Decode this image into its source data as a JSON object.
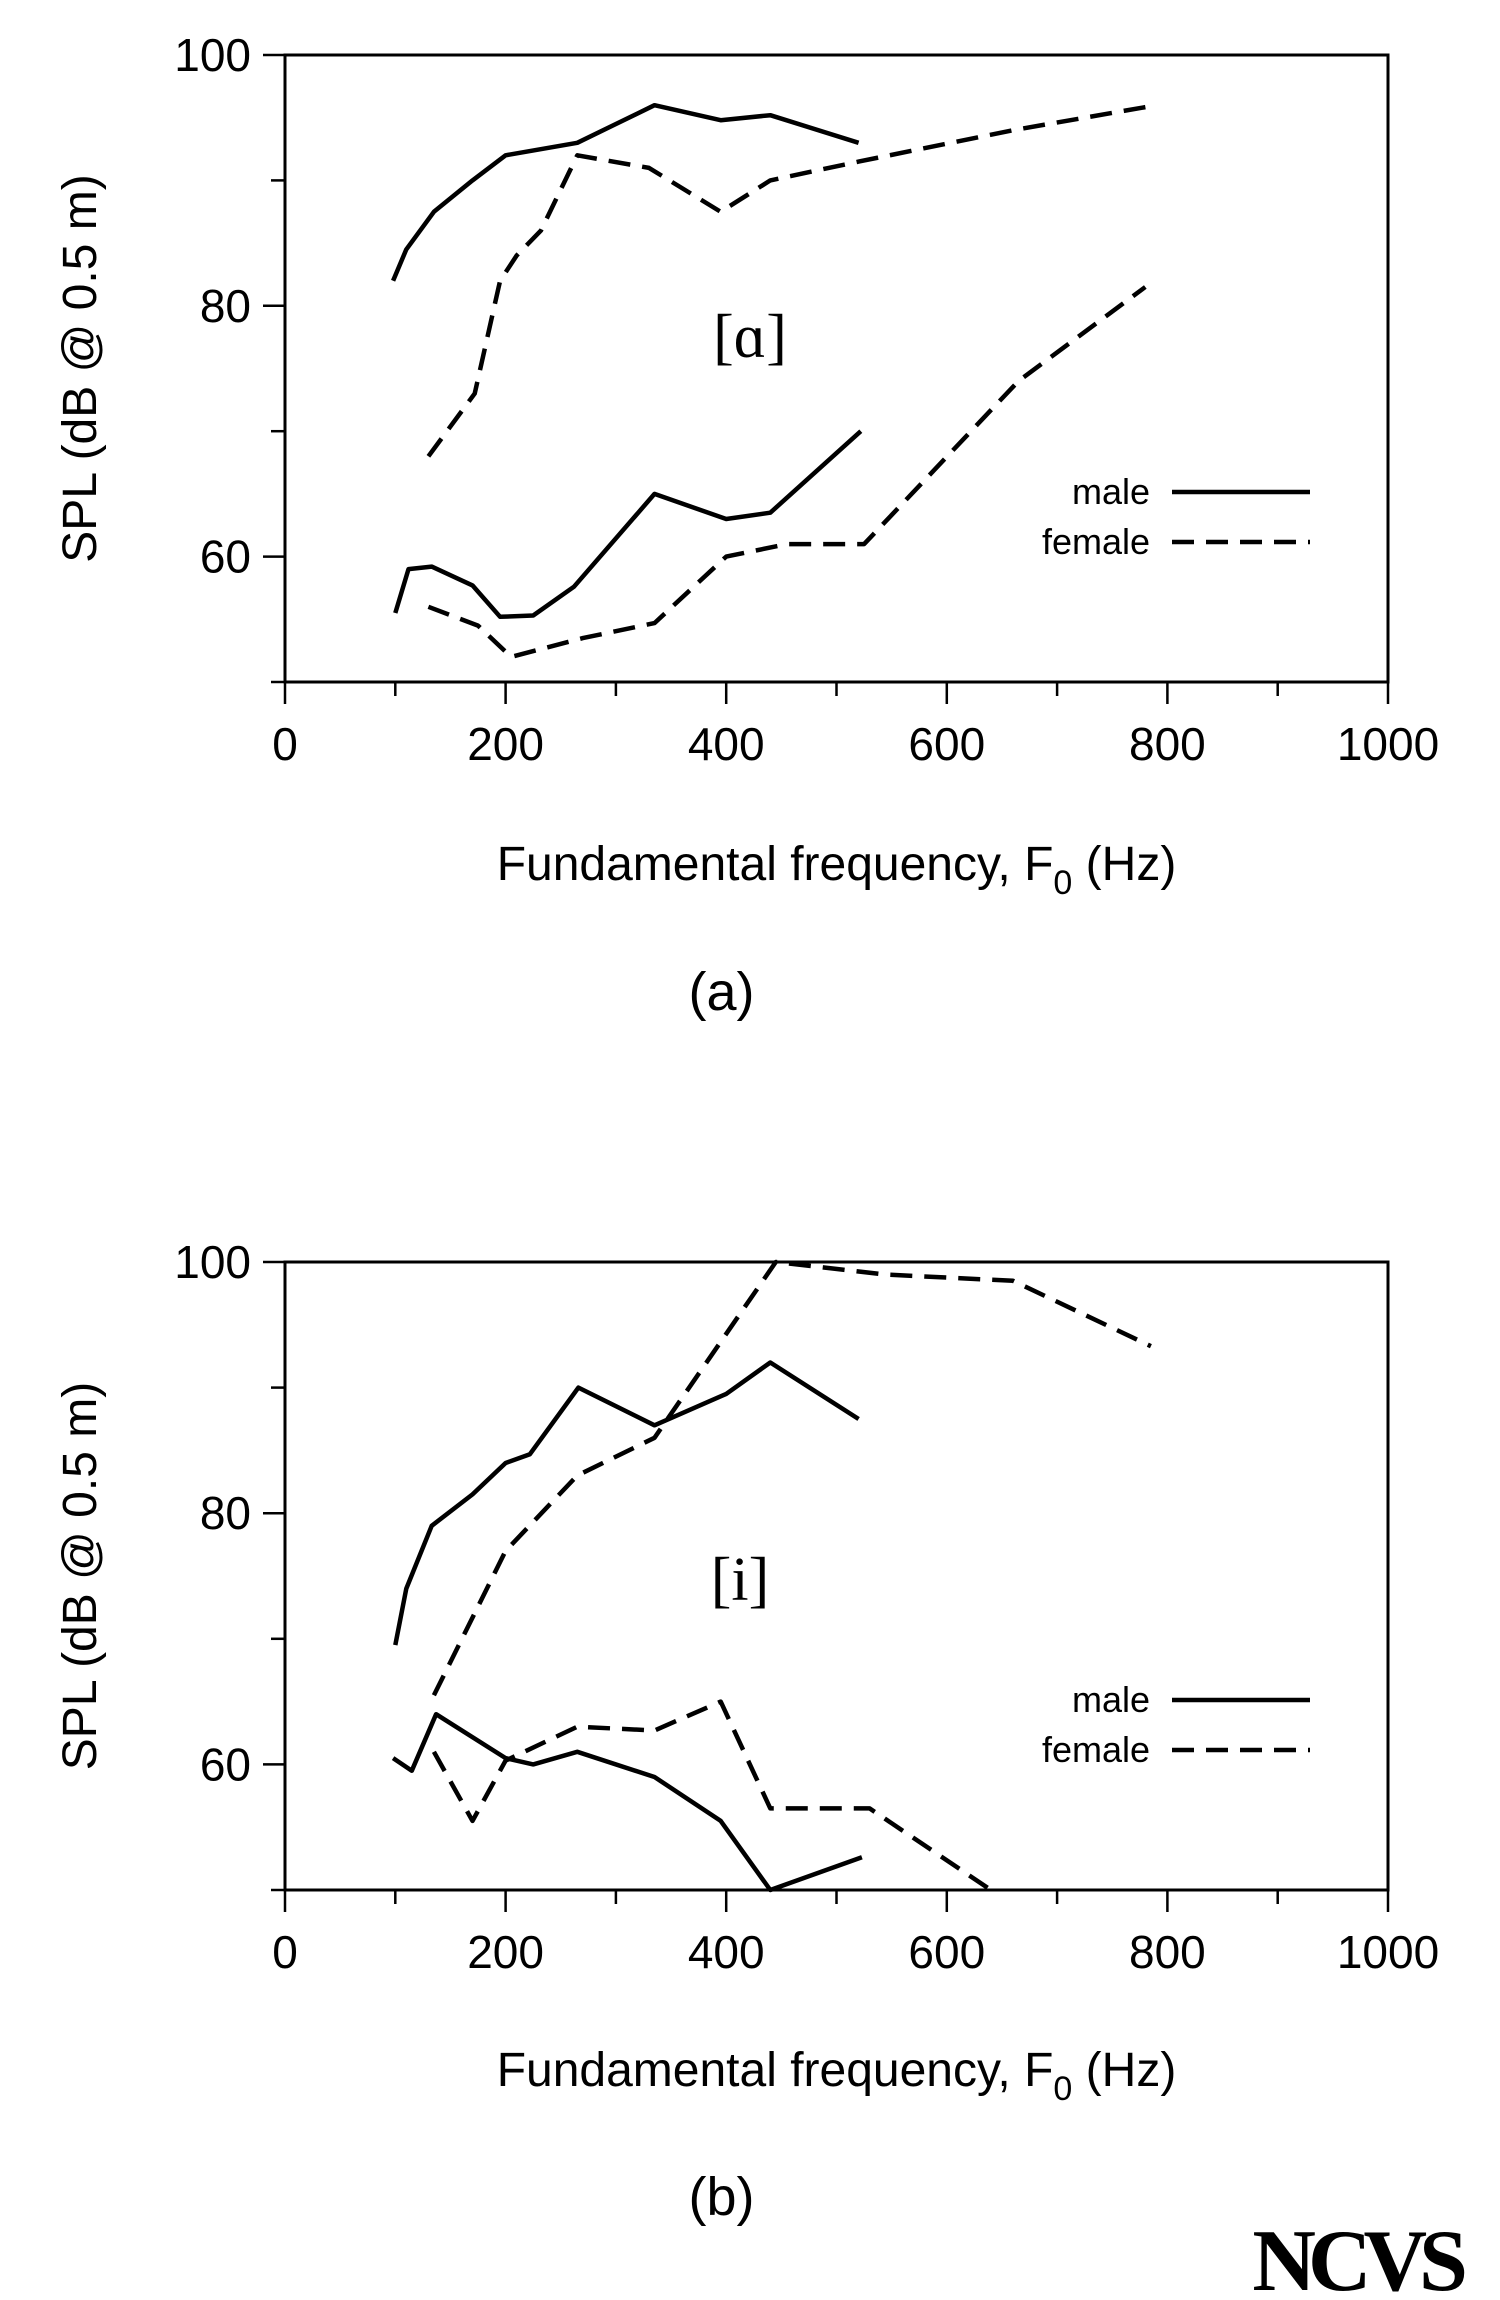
{
  "chart_data": [
    {
      "type": "line",
      "panel_label": "(a)",
      "annotation": "[ɑ]",
      "xlabel_main": "Fundamental frequency, F",
      "xlabel_sub": "0",
      "xlabel_tail": " (Hz)",
      "ylabel": "SPL (dB @ 0.5 m)",
      "xlim": [
        0,
        1000
      ],
      "ylim": [
        50,
        100
      ],
      "xticks": [
        0,
        200,
        400,
        600,
        800,
        1000
      ],
      "yticks": [
        60,
        80,
        100
      ],
      "legend": [
        {
          "label": "male",
          "style": "solid"
        },
        {
          "label": "female",
          "style": "dashed"
        }
      ],
      "series": [
        {
          "group": "male",
          "style": "solid",
          "x": [
            98,
            110,
            135,
            170,
            200,
            265,
            335,
            395,
            440,
            520
          ],
          "y": [
            82,
            84.5,
            87.5,
            90,
            92,
            93,
            96,
            94.8,
            95.2,
            93
          ]
        },
        {
          "group": "male",
          "style": "solid",
          "x": [
            100,
            112,
            133,
            170,
            195,
            225,
            262,
            335,
            400,
            440,
            522
          ],
          "y": [
            55.5,
            59,
            59.2,
            57.7,
            55.2,
            55.3,
            57.6,
            65,
            63,
            63.5,
            70
          ]
        },
        {
          "group": "female",
          "style": "dashed",
          "x": [
            130,
            172,
            195,
            210,
            232,
            265,
            330,
            395,
            440,
            520,
            660,
            790
          ],
          "y": [
            68,
            73,
            82,
            84,
            86,
            92,
            91,
            87.5,
            90,
            91.5,
            94,
            96
          ]
        },
        {
          "group": "female",
          "style": "dashed",
          "x": [
            130,
            175,
            205,
            270,
            335,
            400,
            455,
            525,
            665,
            780
          ],
          "y": [
            56,
            54.5,
            52,
            53.5,
            54.7,
            60,
            61,
            61,
            74,
            81.5
          ]
        }
      ]
    },
    {
      "type": "line",
      "panel_label": "(b)",
      "annotation": "[i]",
      "xlabel_main": "Fundamental frequency, F",
      "xlabel_sub": "0",
      "xlabel_tail": " (Hz)",
      "ylabel": "SPL (dB @ 0.5 m)",
      "xlim": [
        0,
        1000
      ],
      "ylim": [
        50,
        100
      ],
      "xticks": [
        0,
        200,
        400,
        600,
        800,
        1000
      ],
      "yticks": [
        60,
        80,
        100
      ],
      "legend": [
        {
          "label": "male",
          "style": "solid"
        },
        {
          "label": "female",
          "style": "dashed"
        }
      ],
      "series": [
        {
          "group": "male",
          "style": "solid",
          "x": [
            100,
            110,
            133,
            170,
            200,
            222,
            266,
            335,
            400,
            440,
            520
          ],
          "y": [
            69.5,
            74,
            79,
            81.5,
            84,
            84.7,
            90,
            87,
            89.5,
            92,
            87.5
          ]
        },
        {
          "group": "male",
          "style": "solid",
          "x": [
            98,
            115,
            137,
            200,
            225,
            265,
            335,
            395,
            440,
            523
          ],
          "y": [
            60.5,
            59.5,
            64,
            60.5,
            60,
            61,
            59,
            55.5,
            50,
            52.6
          ]
        },
        {
          "group": "female",
          "style": "dashed",
          "x": [
            135,
            200,
            265,
            335,
            445,
            545,
            660,
            785
          ],
          "y": [
            65.5,
            77,
            83,
            86,
            100,
            99,
            98.5,
            93.3
          ]
        },
        {
          "group": "female",
          "style": "dashed",
          "x": [
            135,
            170,
            200,
            265,
            335,
            395,
            440,
            530,
            640
          ],
          "y": [
            61,
            55.5,
            60.3,
            63,
            62.7,
            65,
            56.5,
            56.5,
            50
          ]
        }
      ]
    }
  ],
  "logo": "NCVS"
}
